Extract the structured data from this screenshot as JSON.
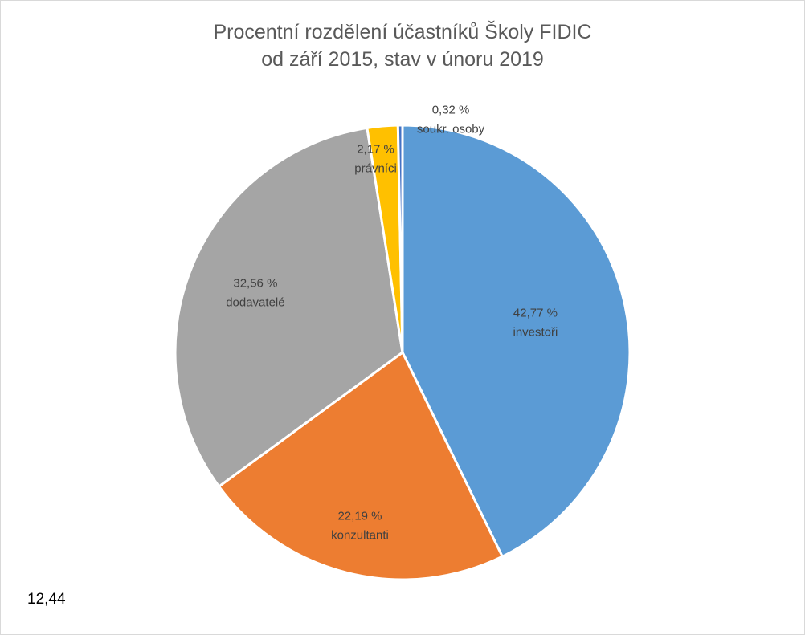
{
  "chart_data": {
    "type": "pie",
    "title": [
      "Procentní rozdělení účastníků Školy FIDIC",
      "od září 2015, stav v únoru 2019"
    ],
    "slices": [
      {
        "key": "investori",
        "label": "investoři",
        "value": 42.77,
        "value_label": "42,77 %",
        "color": "#5b9bd5"
      },
      {
        "key": "konzultanti",
        "label": "konzultanti",
        "value": 22.19,
        "value_label": "22,19 %",
        "color": "#ed7d31"
      },
      {
        "key": "dodavatele",
        "label": "dodavatelé",
        "value": 32.56,
        "value_label": "32,56 %",
        "color": "#a5a5a5"
      },
      {
        "key": "pravnici",
        "label": "právníci",
        "value": 2.17,
        "value_label": "2,17 %",
        "color": "#ffc000"
      },
      {
        "key": "soukr-osoby",
        "label": "soukr. osoby",
        "value": 0.32,
        "value_label": "0,32 %",
        "color": "#4472c4"
      }
    ],
    "legend": "none"
  },
  "note": "12,44"
}
